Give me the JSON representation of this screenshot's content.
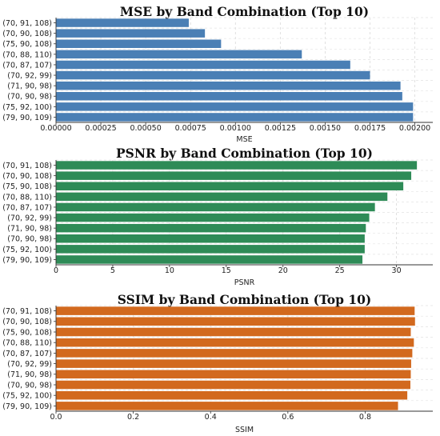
{
  "chart_data": [
    {
      "type": "bar",
      "orientation": "horizontal",
      "title": "MSE by Band Combination (Top 10)",
      "xlabel": "MSE",
      "ylabel": "",
      "color": "#4a7fb5",
      "grid": true,
      "xlim": [
        0,
        0.0021
      ],
      "xticks": [
        0,
        0.00025,
        0.0005,
        0.00075,
        0.001,
        0.00125,
        0.0015,
        0.00175,
        0.002
      ],
      "xtick_labels": [
        "0.00000",
        "0.00025",
        "0.00050",
        "0.00075",
        "0.00100",
        "0.00125",
        "0.00150",
        "0.00175",
        "0.00200"
      ],
      "categories": [
        "(70, 91, 108)",
        "(70, 90, 108)",
        "(75, 90, 108)",
        "(70, 88, 110)",
        "(70, 87, 107)",
        "(70, 92, 99)",
        "(71, 90, 98)",
        "(70, 90, 98)",
        "(75, 92, 100)",
        "(79, 90, 109)"
      ],
      "values": [
        0.00074,
        0.00083,
        0.00092,
        0.00137,
        0.00164,
        0.00175,
        0.00192,
        0.00193,
        0.00199,
        0.00199
      ]
    },
    {
      "type": "bar",
      "orientation": "horizontal",
      "title": "PSNR by Band Combination (Top 10)",
      "xlabel": "PSNR",
      "ylabel": "",
      "color": "#2e8b57",
      "grid": true,
      "xlim": [
        0,
        33.2
      ],
      "xticks": [
        0,
        5,
        10,
        15,
        20,
        25,
        30
      ],
      "xtick_labels": [
        "0",
        "5",
        "10",
        "15",
        "20",
        "25",
        "30"
      ],
      "categories": [
        "(70, 91, 108)",
        "(70, 90, 108)",
        "(75, 90, 108)",
        "(70, 88, 110)",
        "(70, 87, 107)",
        "(70, 92, 99)",
        "(71, 90, 98)",
        "(70, 90, 98)",
        "(75, 92, 100)",
        "(79, 90, 109)"
      ],
      "values": [
        31.8,
        31.3,
        30.6,
        29.2,
        28.1,
        27.6,
        27.3,
        27.2,
        27.2,
        27.0
      ]
    },
    {
      "type": "bar",
      "orientation": "horizontal",
      "title": "SSIM by Band Combination (Top 10)",
      "xlabel": "SSIM",
      "ylabel": "",
      "color": "#d2691e",
      "grid": true,
      "xlim": [
        0,
        0.975
      ],
      "xticks": [
        0,
        0.2,
        0.4,
        0.6,
        0.8
      ],
      "xtick_labels": [
        "0.0",
        "0.2",
        "0.4",
        "0.6",
        "0.8"
      ],
      "categories": [
        "(70, 91, 108)",
        "(70, 90, 108)",
        "(75, 90, 108)",
        "(70, 88, 110)",
        "(70, 87, 107)",
        "(70, 92, 99)",
        "(71, 90, 98)",
        "(70, 90, 98)",
        "(75, 92, 100)",
        "(79, 90, 109)"
      ],
      "values": [
        0.928,
        0.929,
        0.918,
        0.926,
        0.922,
        0.919,
        0.918,
        0.917,
        0.909,
        0.885
      ]
    }
  ]
}
